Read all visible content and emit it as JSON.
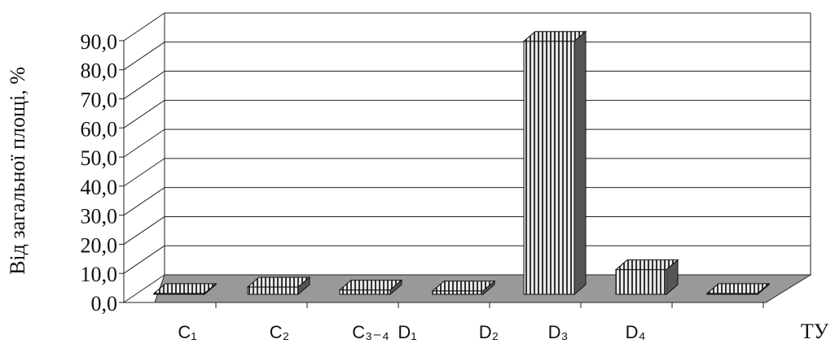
{
  "chart_data": {
    "type": "bar3d",
    "y_label": "Від загальної площі, %",
    "x_label": "ТУ",
    "categories": [
      "C₁",
      "C₂",
      "C₃₋₄",
      "D₁",
      "D₂",
      "D₃",
      "D₄",
      null
    ],
    "values": [
      0.3,
      2.5,
      1.5,
      null,
      1.2,
      87,
      8.5,
      0.3
    ],
    "color": "#555555",
    "floor_color": "#999999",
    "ylim": [
      0,
      90
    ],
    "yticks": [
      {
        "value": 0,
        "label": "0,0"
      },
      {
        "value": 10,
        "label": "10,0"
      },
      {
        "value": 20,
        "label": "20,0"
      },
      {
        "value": 30,
        "label": "30,0"
      },
      {
        "value": 40,
        "label": "40,0"
      },
      {
        "value": 50,
        "label": "50,0"
      },
      {
        "value": 60,
        "label": "60,0"
      },
      {
        "value": 70,
        "label": "70,0"
      },
      {
        "value": 80,
        "label": "80,0"
      },
      {
        "value": 90,
        "label": "90,0"
      }
    ],
    "grid": true
  }
}
